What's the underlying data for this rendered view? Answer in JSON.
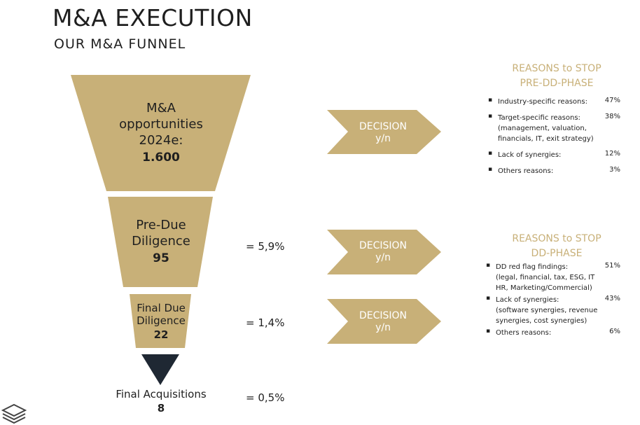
{
  "header": {
    "title": "M&A EXECUTION",
    "subtitle": "OUR M&A FUNNEL"
  },
  "colors": {
    "gold": "#c8b078",
    "dark": "#1f2833",
    "text": "#1f1f1f"
  },
  "funnel": {
    "stage1": {
      "lines": [
        "M&A",
        "opportunities",
        "2024e:"
      ],
      "value": "1.600"
    },
    "stage2": {
      "lines": [
        "Pre-Due",
        "Diligence"
      ],
      "value": "95",
      "pct": "= 5,9%"
    },
    "stage3": {
      "lines": [
        "Final Due",
        "Diligence"
      ],
      "value": "22",
      "pct": "= 1,4%"
    },
    "stage4": {
      "label": "Final Acquisitions",
      "value": "8",
      "pct": "= 0,5%"
    }
  },
  "decisions": [
    {
      "line1": "DECISION",
      "line2": "y/n"
    },
    {
      "line1": "DECISION",
      "line2": "y/n"
    },
    {
      "line1": "DECISION",
      "line2": "y/n"
    }
  ],
  "reasons_pre_dd": {
    "title_line1": "REASONS to STOP",
    "title_line2": "PRE-DD-PHASE",
    "items": [
      {
        "lines": [
          "Industry-specific reasons:"
        ],
        "pct": "47%"
      },
      {
        "lines": [
          "Target-specific reasons:",
          "(management, valuation,",
          "financials, IT, exit strategy)"
        ],
        "pct": "38%"
      },
      {
        "lines": [
          "Lack of synergies:"
        ],
        "pct": "12%"
      },
      {
        "lines": [
          "Others reasons:"
        ],
        "pct": "3%"
      }
    ]
  },
  "reasons_dd": {
    "title_line1": "REASONS to STOP",
    "title_line2": "DD-PHASE",
    "items": [
      {
        "lines": [
          "DD red flag findings:",
          "(legal, financial, tax, ESG, IT",
          " HR, Marketing/Commercial)"
        ],
        "pct": "51%"
      },
      {
        "lines": [
          "Lack of synergies:",
          "(software synergies, revenue",
          " synergies, cost synergies)"
        ],
        "pct": "43%"
      },
      {
        "lines": [
          "Others reasons:"
        ],
        "pct": "6%"
      }
    ]
  },
  "logo": {
    "icon": "layers-logo-icon"
  }
}
